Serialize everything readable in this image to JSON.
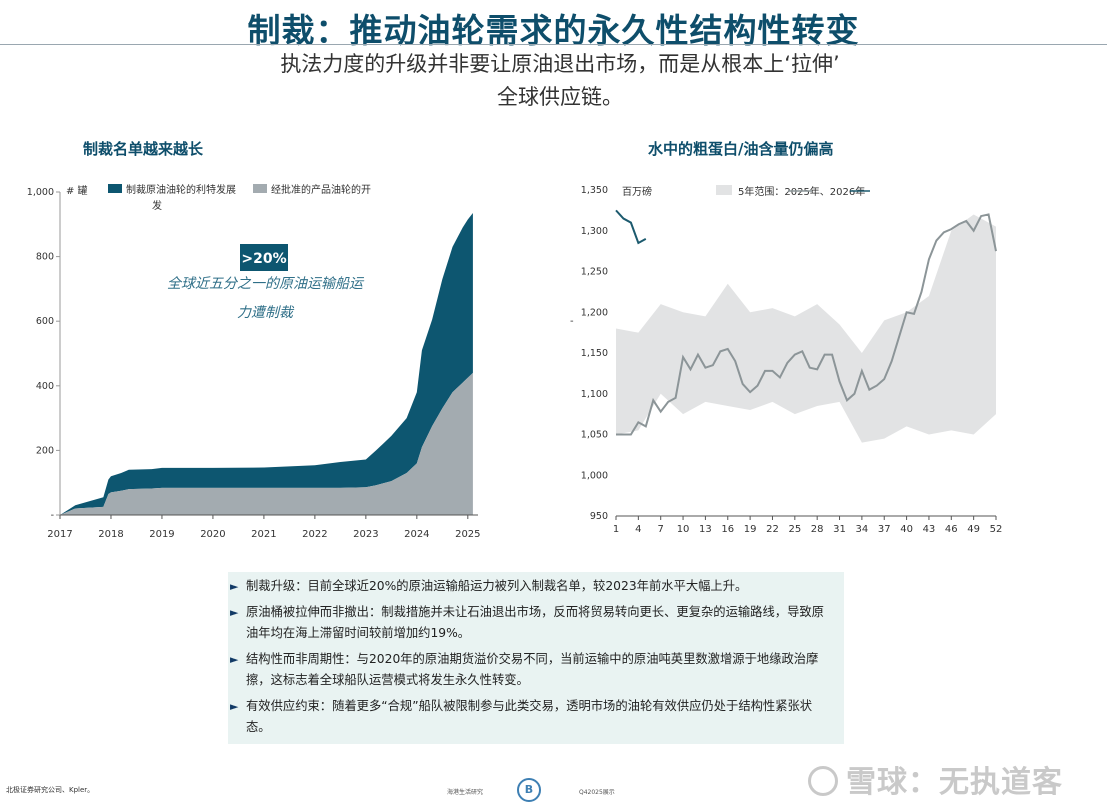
{
  "title": "制裁：推动油轮需求的永久性结构性转变",
  "subtitle_line1": "执法力度的升级并非要让原油退出市场，而是从根本上‘拉伸’",
  "subtitle_line2": "全球供应链。",
  "colors": {
    "title": "#0e4e6b",
    "dark_teal": "#0d5670",
    "gray_fill": "#a3abb0",
    "range_band": "#e2e3e4",
    "line_gray": "#8c9598",
    "line_2026": "#1c5a6e"
  },
  "left_chart": {
    "heading": "制裁名单越来越长",
    "unit_label": "# 罐",
    "legend": [
      "制裁原油油轮的利特发展",
      "经批准的产品油轮的开",
      "发"
    ],
    "callout_badge": ">20%",
    "callout_line1": "全球近五分之一的原油运输船运",
    "callout_line2": "力遭制裁"
  },
  "right_chart": {
    "heading": "水中的粗蛋白/油含量仍偏高",
    "unit_label": "百万磅",
    "legend_range": "5年范围：2025年、2026年",
    "side_tick": "-"
  },
  "chart_data": [
    {
      "type": "area",
      "title": "制裁名单越来越长",
      "ylabel": "# 罐",
      "xlabel": "",
      "ylim": [
        0,
        1000
      ],
      "xlim": [
        2017,
        2025.2
      ],
      "y_ticks": [
        "1,000",
        "800",
        "600",
        "400",
        "200",
        "-"
      ],
      "x_ticks": [
        "2017",
        "2018",
        "2019",
        "2020",
        "2021",
        "2022",
        "2023",
        "2024",
        "2025"
      ],
      "stacked": true,
      "series": [
        {
          "name": "经批准的产品油轮的开发",
          "x": [
            2017.0,
            2017.3,
            2017.85,
            2017.95,
            2018.0,
            2018.2,
            2018.35,
            2018.8,
            2019.0,
            2020.0,
            2021.0,
            2022.0,
            2022.5,
            2023.0,
            2023.2,
            2023.5,
            2023.8,
            2024.0,
            2024.1,
            2024.3,
            2024.5,
            2024.7,
            2024.9,
            2025.0,
            2025.1
          ],
          "values": [
            0,
            20,
            25,
            65,
            70,
            75,
            80,
            82,
            84,
            84,
            84,
            84,
            84,
            86,
            92,
            105,
            130,
            160,
            210,
            275,
            330,
            380,
            410,
            425,
            440
          ]
        },
        {
          "name": "制裁原油油轮的利特发展",
          "x": [
            2017.0,
            2017.3,
            2017.85,
            2017.95,
            2018.0,
            2018.2,
            2018.35,
            2018.8,
            2019.0,
            2020.0,
            2021.0,
            2022.0,
            2022.5,
            2023.0,
            2023.2,
            2023.5,
            2023.8,
            2024.0,
            2024.1,
            2024.3,
            2024.5,
            2024.7,
            2024.9,
            2025.0,
            2025.1
          ],
          "values": [
            0,
            10,
            30,
            45,
            50,
            55,
            60,
            60,
            62,
            62,
            63,
            70,
            80,
            86,
            108,
            140,
            170,
            220,
            300,
            330,
            400,
            450,
            480,
            490,
            495
          ]
        }
      ]
    },
    {
      "type": "line",
      "title": "水中的粗蛋白/油含量仍偏高",
      "ylabel": "百万磅",
      "xlabel": "",
      "ylim": [
        950,
        1350
      ],
      "xlim": [
        1,
        52
      ],
      "y_ticks": [
        "1,350",
        "1,300",
        "1,250",
        "1,200",
        "1,150",
        "1,100",
        "1,050",
        "1,000",
        "950"
      ],
      "x_ticks": [
        "1",
        "4",
        "7",
        "10",
        "13",
        "16",
        "19",
        "22",
        "25",
        "28",
        "31",
        "34",
        "37",
        "40",
        "43",
        "46",
        "49",
        "52"
      ],
      "range_band": {
        "name": "5年范围",
        "x": [
          1,
          4,
          7,
          10,
          13,
          16,
          19,
          22,
          25,
          28,
          31,
          34,
          37,
          40,
          43,
          46,
          49,
          52
        ],
        "upper": [
          1180,
          1175,
          1210,
          1200,
          1195,
          1235,
          1200,
          1205,
          1195,
          1210,
          1185,
          1150,
          1190,
          1200,
          1220,
          1300,
          1320,
          1305
        ],
        "lower": [
          1050,
          1055,
          1100,
          1075,
          1090,
          1085,
          1080,
          1090,
          1075,
          1085,
          1090,
          1040,
          1045,
          1060,
          1050,
          1055,
          1050,
          1075
        ]
      },
      "series": [
        {
          "name": "2025年",
          "x": [
            1,
            3,
            4,
            5,
            6,
            7,
            8,
            9,
            10,
            11,
            12,
            13,
            14,
            15,
            16,
            17,
            18,
            19,
            20,
            21,
            22,
            23,
            24,
            25,
            26,
            27,
            28,
            29,
            30,
            31,
            32,
            33,
            34,
            35,
            36,
            37,
            38,
            39,
            40,
            41,
            42,
            43,
            44,
            45,
            46,
            47,
            48,
            49,
            50,
            51,
            52
          ],
          "values": [
            1050,
            1050,
            1065,
            1060,
            1092,
            1078,
            1090,
            1095,
            1145,
            1130,
            1148,
            1132,
            1135,
            1152,
            1155,
            1140,
            1112,
            1102,
            1110,
            1128,
            1128,
            1120,
            1138,
            1148,
            1152,
            1132,
            1130,
            1148,
            1148,
            1115,
            1092,
            1100,
            1128,
            1105,
            1110,
            1118,
            1140,
            1170,
            1200,
            1198,
            1225,
            1265,
            1288,
            1298,
            1302,
            1308,
            1312,
            1300,
            1318,
            1320,
            1275
          ]
        },
        {
          "name": "2026年",
          "x": [
            1,
            2,
            3,
            4,
            5
          ],
          "values": [
            1325,
            1315,
            1310,
            1285,
            1290
          ]
        }
      ]
    }
  ],
  "bullets": [
    "制裁升级：目前全球近20%的原油运输船运力被列入制裁名单，较2023年前水平大幅上升。",
    "原油桶被拉伸而非撤出：制裁措施并未让石油退出市场，反而将贸易转向更长、更复杂的运输路线，导致原油年均在海上滞留时间较前增加约19%。",
    "结构性而非周期性：与2020年的原油期货溢价交易不同，当前运输中的原油吨英里数激增源于地缘政治摩擦，这标志着全球船队运营模式将发生永久性转变。",
    "有效供应约束：随着更多“合规”船队被限制参与此类交易，透明市场的油轮有效供应仍处于结构性紧张状态。"
  ],
  "bullet_marker": "►",
  "footer": {
    "source": "北极证券研究公司、Kpler。",
    "mid": "海港生活研究",
    "logo_text": "B",
    "page": "Q42025展示"
  },
  "watermark": "雪球：无执道客"
}
